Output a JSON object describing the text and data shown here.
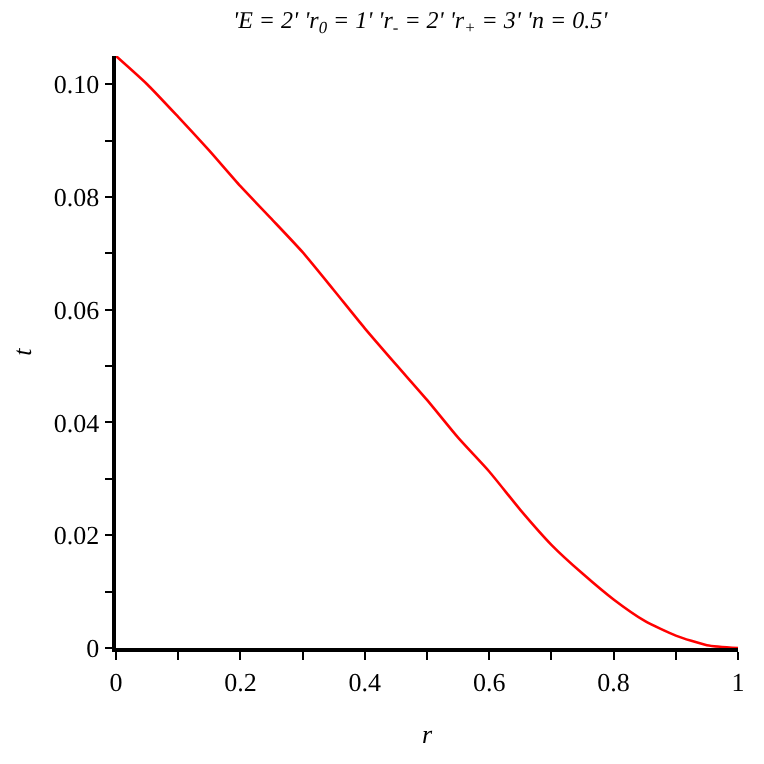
{
  "chart_data": {
    "type": "line",
    "title": "'E = 2' 'r$_{0}$ = 1' 'r$_{-}$ = 2' 'r$_{+}$ = 3' 'n = 0.5'",
    "xlabel": "r",
    "ylabel": "t",
    "x": [
      0,
      0.05,
      0.1,
      0.15,
      0.2,
      0.25,
      0.3,
      0.35,
      0.4,
      0.45,
      0.5,
      0.55,
      0.6,
      0.65,
      0.7,
      0.75,
      0.8,
      0.85,
      0.9,
      0.95,
      1
    ],
    "series": [
      {
        "color": "#ff0000",
        "values": [
          0.105,
          0.1,
          0.0942,
          0.0882,
          0.0819,
          0.0761,
          0.0702,
          0.0635,
          0.0567,
          0.0503,
          0.044,
          0.0373,
          0.0313,
          0.0245,
          0.0183,
          0.0132,
          0.0086,
          0.0048,
          0.0022,
          0.0005,
          0
        ]
      }
    ],
    "xlim": [
      0,
      1
    ],
    "ylim": [
      0,
      0.105
    ],
    "xticks": [
      0,
      {
        "value": 0.1,
        "label": null
      },
      0.2,
      {
        "value": 0.3,
        "label": null
      },
      0.4,
      {
        "value": 0.5,
        "label": null
      },
      0.6,
      {
        "value": 0.7,
        "label": null
      },
      0.8,
      {
        "value": 0.9,
        "label": null
      },
      1
    ],
    "yticks": [
      0,
      {
        "value": 0.01,
        "label": null
      },
      0.02,
      {
        "value": 0.03,
        "label": null
      },
      0.04,
      {
        "value": 0.05,
        "label": null
      },
      0.06,
      {
        "value": 0.07,
        "label": null
      },
      0.08,
      {
        "value": 0.09,
        "label": null
      },
      {
        "value": 0.1,
        "label": "0.10"
      }
    ],
    "marker": "none",
    "line_style": "solid"
  }
}
